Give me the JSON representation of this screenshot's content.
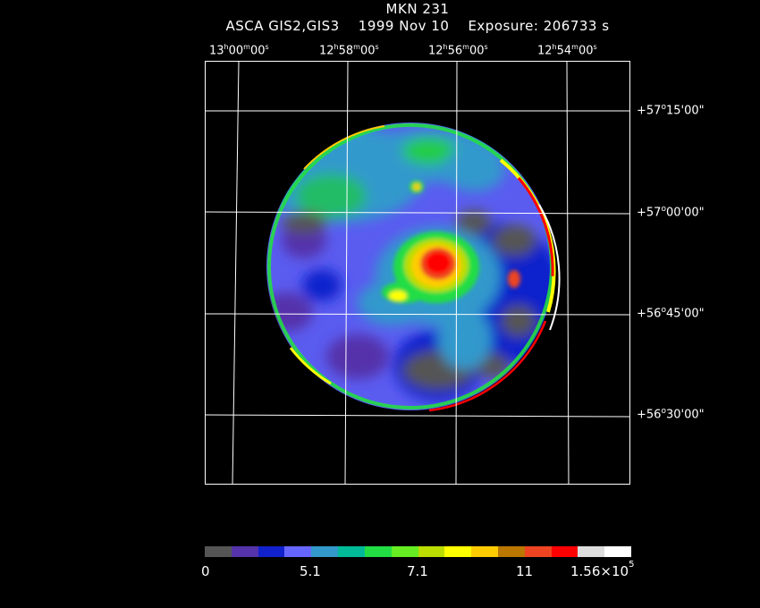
{
  "header": {
    "object": "MKN 231",
    "instrument": "ASCA GIS2,GIS3",
    "date": "1999 Nov 10",
    "exposure_label": "Exposure: 206733 s"
  },
  "ra_ticks": [
    {
      "h": "13",
      "m": "00",
      "s": "00"
    },
    {
      "h": "12",
      "m": "58",
      "s": "00"
    },
    {
      "h": "12",
      "m": "56",
      "s": "00"
    },
    {
      "h": "12",
      "m": "54",
      "s": "00"
    }
  ],
  "dec_ticks": [
    {
      "d": "+57",
      "m": "15",
      "s": "00"
    },
    {
      "d": "+57",
      "m": "00",
      "s": "00"
    },
    {
      "d": "+56",
      "m": "45",
      "s": "00"
    },
    {
      "d": "+56",
      "m": "30",
      "s": "00"
    }
  ],
  "colorbar": {
    "colors": [
      "#555555",
      "#5533aa",
      "#1122cc",
      "#6666ff",
      "#3399cc",
      "#00bb99",
      "#22dd44",
      "#66ee22",
      "#bbdd00",
      "#ffff00",
      "#ffcc00",
      "#bb7700",
      "#ee4422",
      "#ff0000",
      "#dddddd",
      "#ffffff"
    ],
    "labels": {
      "l0": "0",
      "l1": "5.1",
      "l2": "7.1",
      "l3": "11",
      "l4_base": "1.56×10",
      "l4_exp": "5"
    }
  }
}
